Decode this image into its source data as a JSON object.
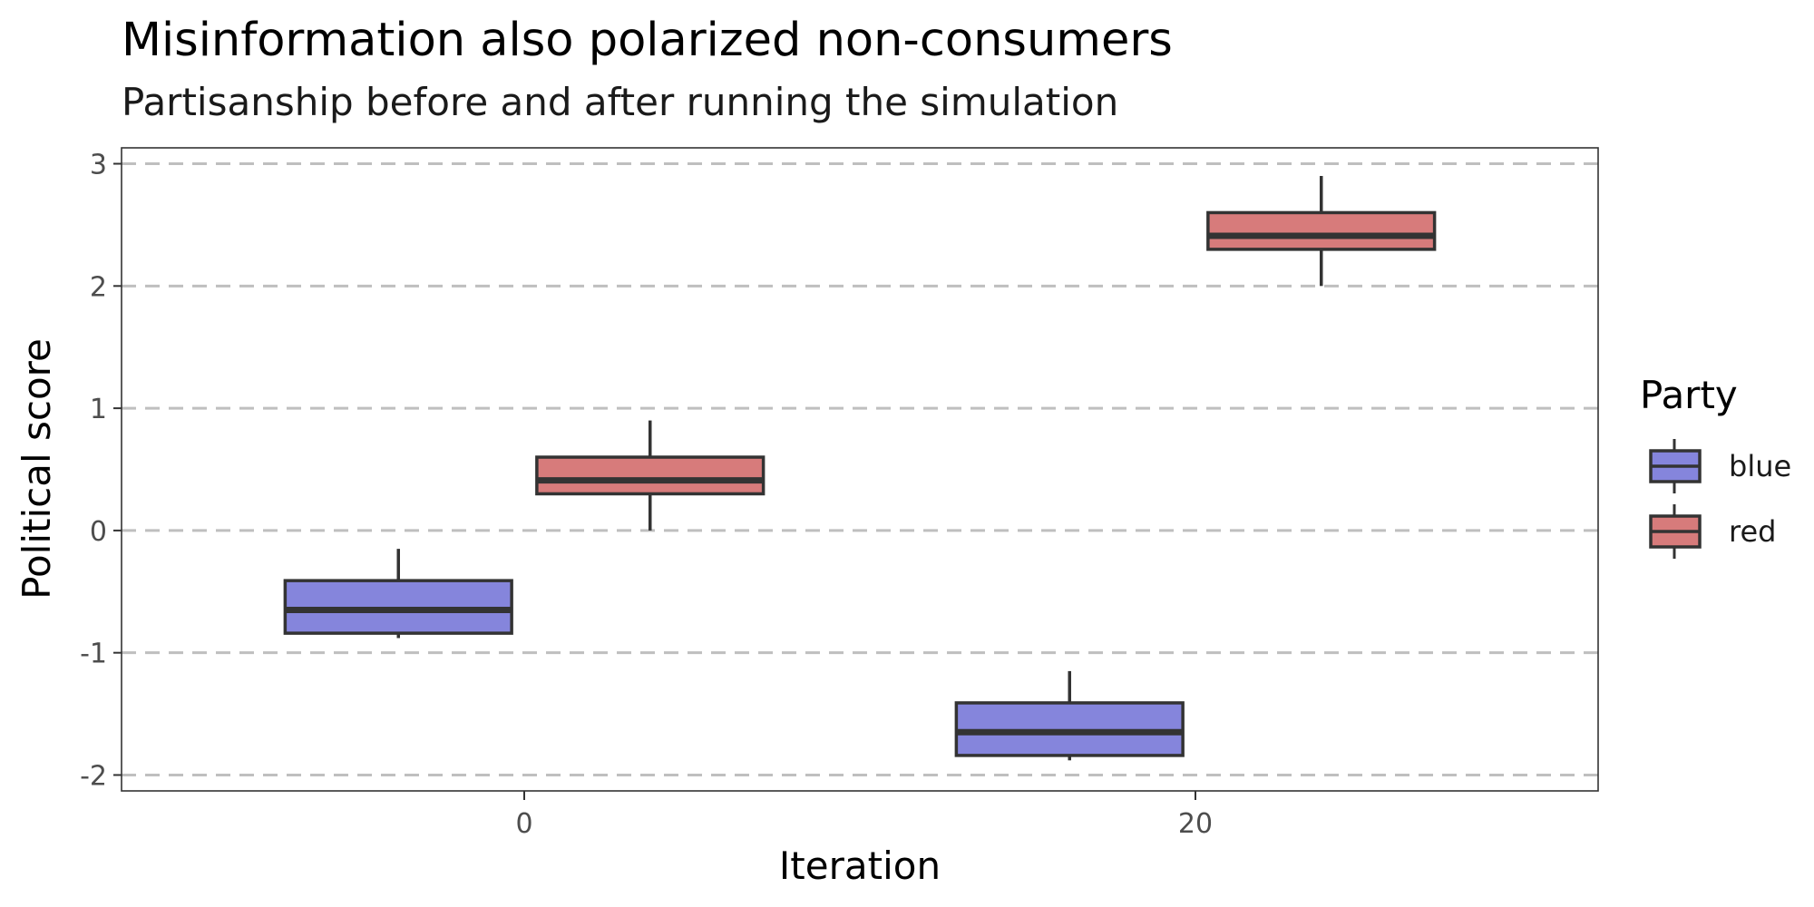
{
  "chart_data": {
    "type": "boxplot",
    "title": "Misinformation also polarized non-consumers",
    "subtitle": "Partisanship before and after running the simulation",
    "xlabel": "Iteration",
    "ylabel": "Political score",
    "x_ticks": [
      0,
      20
    ],
    "x_tick_labels": [
      "0",
      "20"
    ],
    "xlim": [
      -12,
      32
    ],
    "y_ticks": [
      -2,
      -1,
      0,
      1,
      2,
      3
    ],
    "y_tick_labels": [
      "-2",
      "-1",
      "0",
      "1",
      "2",
      "3"
    ],
    "ylim": [
      -2.13,
      3.13
    ],
    "grid": "horizontal dashed",
    "legend": {
      "title": "Party",
      "position": "right",
      "entries": [
        {
          "label": "blue",
          "color": "#8585dc"
        },
        {
          "label": "red",
          "color": "#d77b7b"
        }
      ]
    },
    "series": [
      {
        "name": "blue",
        "color": "#8585dc",
        "boxes": [
          {
            "x": 0,
            "lower_whisker": -0.88,
            "q1": -0.84,
            "median": -0.65,
            "q3": -0.41,
            "upper_whisker": -0.15
          },
          {
            "x": 20,
            "lower_whisker": -1.88,
            "q1": -1.84,
            "median": -1.65,
            "q3": -1.41,
            "upper_whisker": -1.15
          }
        ]
      },
      {
        "name": "red",
        "color": "#d77b7b",
        "boxes": [
          {
            "x": 0,
            "lower_whisker": 0.0,
            "q1": 0.3,
            "median": 0.41,
            "q3": 0.6,
            "upper_whisker": 0.9
          },
          {
            "x": 20,
            "lower_whisker": 2.0,
            "q1": 2.3,
            "median": 2.41,
            "q3": 2.6,
            "upper_whisker": 2.9
          }
        ]
      }
    ]
  }
}
